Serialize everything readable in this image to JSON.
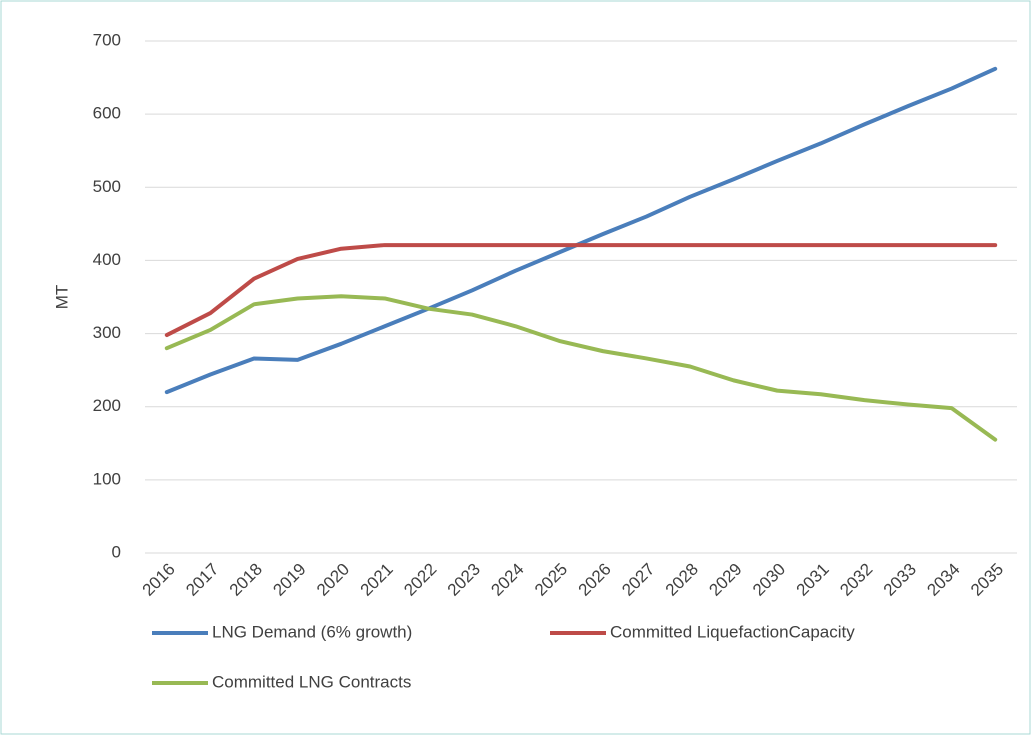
{
  "chart_data": {
    "type": "line",
    "y_label": "MT",
    "categories": [
      "2016",
      "2017",
      "2018",
      "2019",
      "2020",
      "2021",
      "2022",
      "2023",
      "2024",
      "2025",
      "2026",
      "2027",
      "2028",
      "2029",
      "2030",
      "2031",
      "2032",
      "2033",
      "2034",
      "2035"
    ],
    "series": [
      {
        "name": "LNG Demand (6% growth)",
        "color": "#4a7ebb",
        "values": [
          220,
          244,
          266,
          264,
          286,
          310,
          334,
          359,
          386,
          411,
          436,
          460,
          487,
          511,
          536,
          560,
          586,
          611,
          635,
          662
        ]
      },
      {
        "name": "Committed LiquefactionCapacity",
        "color": "#be4b48",
        "values": [
          298,
          328,
          375,
          402,
          416,
          421,
          421,
          421,
          421,
          421,
          421,
          421,
          421,
          421,
          421,
          421,
          421,
          421,
          421,
          421
        ]
      },
      {
        "name": "Committed LNG Contracts",
        "color": "#98b954",
        "values": [
          280,
          305,
          340,
          348,
          351,
          348,
          334,
          326,
          310,
          290,
          276,
          266,
          255,
          236,
          222,
          217,
          209,
          203,
          198,
          155
        ]
      }
    ],
    "ylim": [
      0,
      700
    ],
    "yticks": [
      0,
      100,
      200,
      300,
      400,
      500,
      600,
      700
    ],
    "grid": true
  }
}
